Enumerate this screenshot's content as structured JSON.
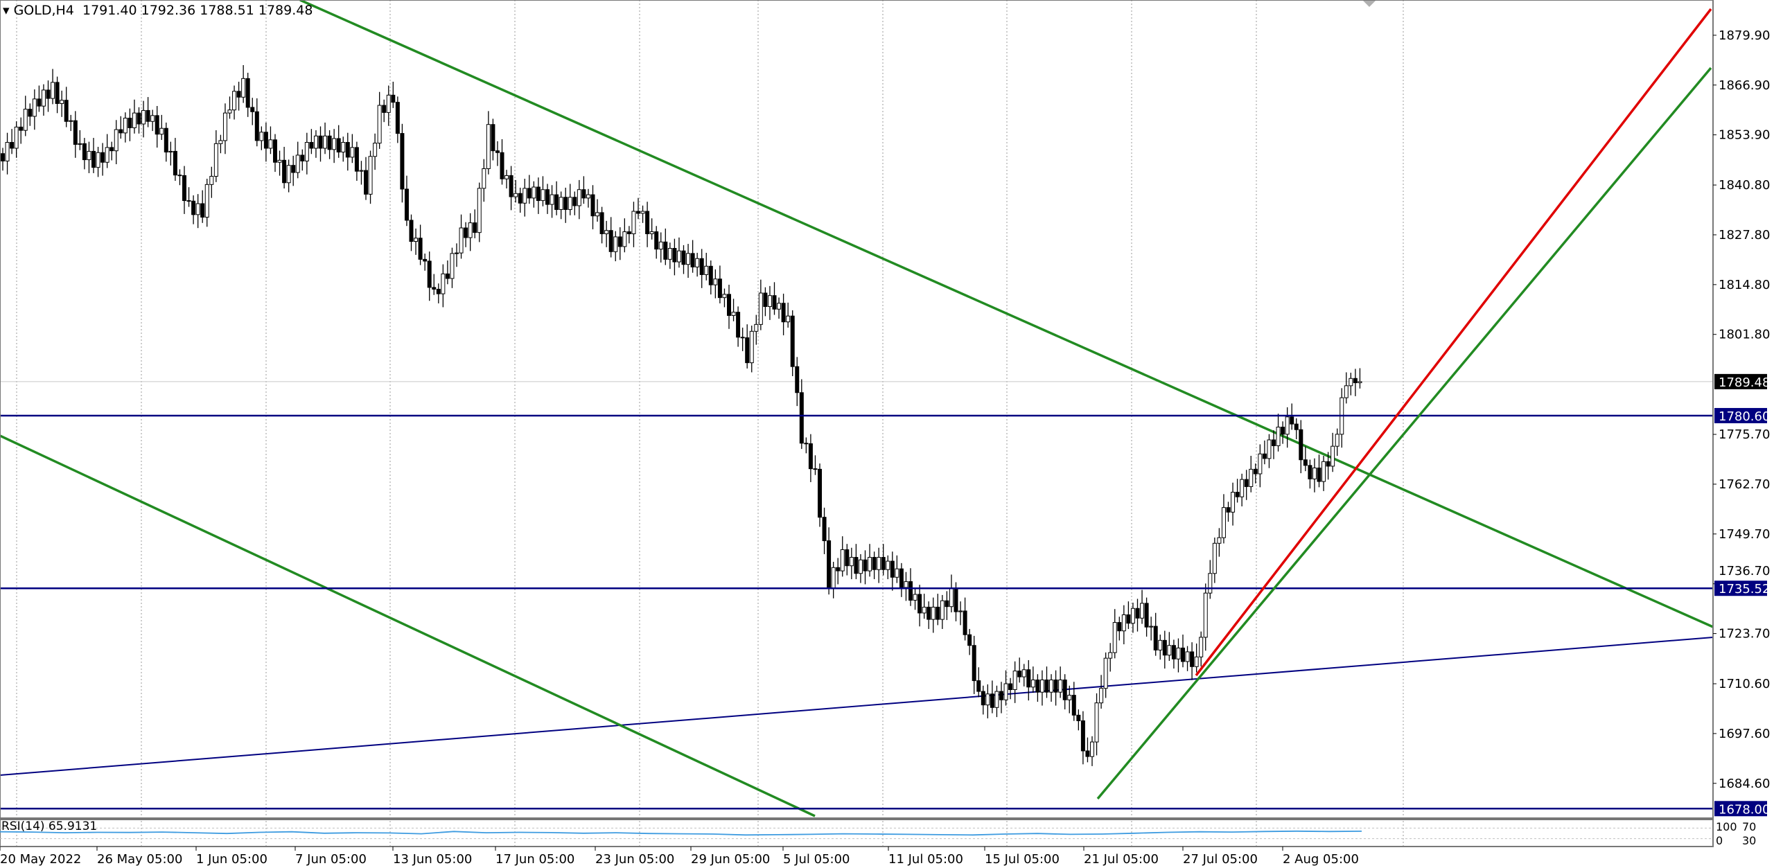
{
  "header": {
    "symbol": "GOLD,H4",
    "open": "1791.40",
    "high": "1792.36",
    "low": "1788.51",
    "close": "1789.48"
  },
  "chart_data": {
    "type": "candlestick",
    "ylim": [
      1675.7,
      1889.1
    ],
    "grid": true,
    "closes": [
      1847,
      1852,
      1859,
      1863,
      1866,
      1859,
      1850,
      1847,
      1849,
      1856,
      1858,
      1859,
      1854,
      1845,
      1835,
      1834,
      1850,
      1862,
      1867,
      1854,
      1851,
      1843,
      1847,
      1852,
      1852,
      1851,
      1849,
      1840,
      1860,
      1864,
      1830,
      1823,
      1812,
      1818,
      1828,
      1830,
      1855,
      1844,
      1837,
      1839,
      1838,
      1836,
      1836,
      1839,
      1832,
      1825,
      1827,
      1835,
      1827,
      1823,
      1822,
      1821,
      1818,
      1813,
      1806,
      1796,
      1811,
      1810,
      1805,
      1775,
      1765,
      1737,
      1744,
      1741,
      1742,
      1742,
      1739,
      1734,
      1729,
      1729,
      1734,
      1725,
      1707,
      1706,
      1709,
      1714,
      1710,
      1710,
      1710,
      1704,
      1690,
      1711,
      1725,
      1728,
      1730,
      1721,
      1719,
      1718,
      1716,
      1741,
      1755,
      1761,
      1765,
      1771,
      1776,
      1780,
      1766,
      1765,
      1771,
      1790,
      1789.48
    ],
    "y_ticks": [
      "1879.90",
      "1866.90",
      "1853.90",
      "1840.80",
      "1827.80",
      "1814.80",
      "1801.80",
      "1775.70",
      "1762.70",
      "1749.70",
      "1736.70",
      "1723.70",
      "1710.60",
      "1697.60",
      "1684.60"
    ],
    "x_ticks": [
      "20 May 2022",
      "26 May 05:00",
      "1 Jun 05:00",
      "7 Jun 05:00",
      "13 Jun 05:00",
      "17 Jun 05:00",
      "23 Jun 05:00",
      "29 Jun 05:00",
      "5 Jul 05:00",
      "11 Jul 05:00",
      "15 Jul 05:00",
      "21 Jul 05:00",
      "27 Jul 05:00",
      "2 Aug 05:00"
    ],
    "current_price": {
      "value": 1789.48,
      "label": "1789.48",
      "color": "#000000"
    },
    "horizontal_levels": [
      {
        "value": 1780.6,
        "label": "1780.60",
        "color": "#000080"
      },
      {
        "value": 1735.52,
        "label": "1735.52",
        "color": "#000080"
      },
      {
        "value": 1678.0,
        "label": "1678.00",
        "color": "#000080"
      }
    ],
    "trendline_colors": {
      "green": "#228B22",
      "red": "#E00000",
      "navy": "#000080"
    },
    "rsi": {
      "label": "RSI(14) 65.9131",
      "levels": [
        "100",
        "70",
        "30",
        "0"
      ],
      "color": "#3D9BE0",
      "values": [
        62,
        60,
        55,
        58,
        57,
        60,
        55,
        50,
        58,
        62,
        52,
        55,
        54,
        48,
        64,
        55,
        58,
        56,
        52,
        55,
        50,
        48,
        46,
        40,
        42,
        44,
        48,
        46,
        44,
        42,
        40,
        46,
        50,
        44,
        46,
        52,
        58,
        62,
        60,
        64,
        66,
        64,
        65.9
      ]
    }
  }
}
